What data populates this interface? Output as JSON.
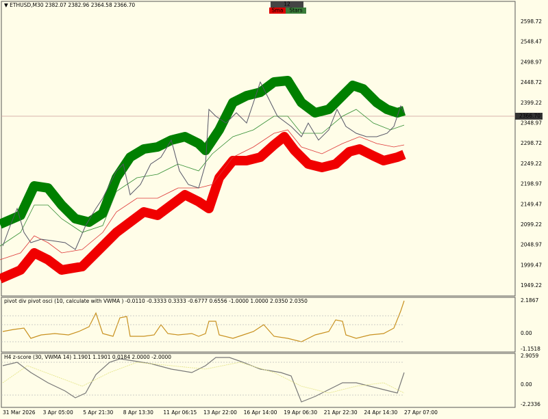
{
  "header": {
    "symbol_line": "▼ ETHUSD,M30  2382.07 2382.96 2364.58 2366.70"
  },
  "buttons": [
    "12",
    "Sma",
    "Stars"
  ],
  "price_axis": {
    "labels": [
      "2598.72",
      "2548.47",
      "2498.97",
      "2448.72",
      "2399.22",
      "2348.97",
      "2298.72",
      "2249.22",
      "2198.97",
      "2149.47",
      "2099.22",
      "2048.97",
      "1999.47",
      "1949.22"
    ],
    "current_price": "2366.70"
  },
  "panels": [
    {
      "title": "pivot div pivot osci (10, calculate with VWMA ) -0.0110 -0.3333 0.3333 -0.6777 0.6556 -1.0000 1.0000 2.0350 2.0350",
      "labels": [
        "2.1867",
        "0.00",
        "-1.1518"
      ]
    },
    {
      "title": "H4 z-score (30, VWMA 14) 1.1901 1.1901 0.0184 2.0000 -2.0000",
      "labels": [
        "2.9059",
        "0.00",
        "-2.2336"
      ]
    }
  ],
  "time_axis": {
    "labels": [
      "31 Mar 2026",
      "3 Apr 05:00",
      "5 Apr 21:30",
      "8 Apr 13:30",
      "11 Apr 06:15",
      "13 Apr 22:00",
      "16 Apr 14:00",
      "19 Apr 06:30",
      "21 Apr 22:30",
      "24 Apr 14:30",
      "27 Apr 07:00"
    ]
  }
}
